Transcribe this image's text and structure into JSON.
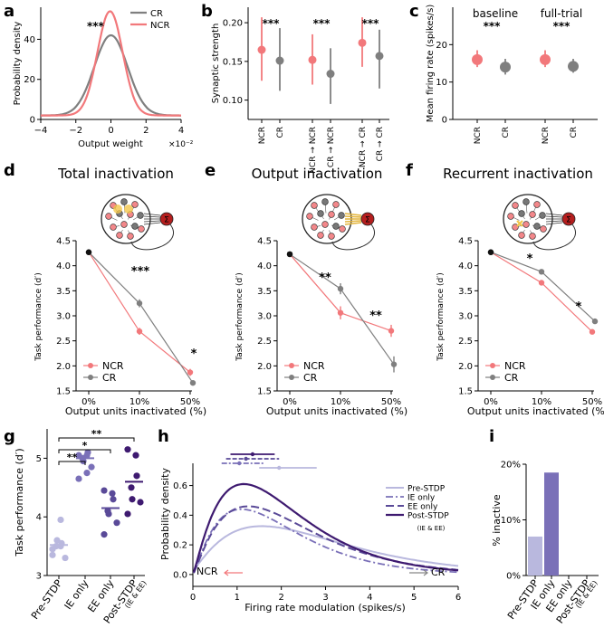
{
  "colors": {
    "ncr": "#f2787b",
    "cr": "#7f7f7f",
    "pre": "#b9b8de",
    "ie": "#7a70b8",
    "ee": "#5a4a98",
    "post": "#3e1a70"
  },
  "panels": {
    "a": "a",
    "b": "b",
    "c": "c",
    "d": "d",
    "e": "e",
    "f": "f",
    "g": "g",
    "h": "h",
    "i": "i"
  },
  "chart_data": [
    {
      "panel": "a",
      "type": "line",
      "title": "",
      "xlabel": "Output weight",
      "ylabel": "Probability density",
      "xlim": [
        -4,
        4
      ],
      "ylim": [
        0,
        56
      ],
      "x_scale_note": "×10⁻²",
      "xticks": [
        "−4",
        "−2",
        "0",
        "2",
        "4"
      ],
      "yticks": [
        "0",
        "20",
        "40"
      ],
      "series": [
        {
          "name": "CR",
          "mean": 0.0,
          "peak": 42,
          "width": 0.95
        },
        {
          "name": "NCR",
          "mean": -0.05,
          "peak": 54,
          "width": 0.72
        }
      ],
      "legend": [
        "CR",
        "NCR"
      ],
      "annotations": [
        "***"
      ]
    },
    {
      "panel": "b",
      "type": "scatter",
      "ylabel": "Synaptic strength",
      "ylim": [
        0.075,
        0.22
      ],
      "yticks": [
        "0.10",
        "0.15",
        "0.20"
      ],
      "categories": [
        "NCR",
        "CR",
        "NCR → NCR",
        "CR → NCR",
        "NCR → CR",
        "CR → CR"
      ],
      "groups": [
        "NCR",
        "CR",
        "NCR",
        "CR",
        "NCR",
        "CR"
      ],
      "values": [
        0.165,
        0.151,
        0.152,
        0.134,
        0.174,
        0.157
      ],
      "lower": [
        0.125,
        0.112,
        0.12,
        0.095,
        0.143,
        0.115
      ],
      "upper": [
        0.207,
        0.193,
        0.185,
        0.167,
        0.207,
        0.191
      ],
      "annotations": [
        "***",
        "***",
        "***"
      ]
    },
    {
      "panel": "c",
      "type": "scatter",
      "ylabel": "Mean firing rate (spikes/s)",
      "ylim": [
        0,
        30
      ],
      "yticks": [
        "0",
        "10",
        "20"
      ],
      "group_titles": [
        "baseline",
        "full-trial"
      ],
      "categories": [
        "NCR",
        "CR",
        "NCR",
        "CR"
      ],
      "groups": [
        "NCR",
        "CR",
        "NCR",
        "CR"
      ],
      "values": [
        16.0,
        14.0,
        16.0,
        14.2
      ],
      "lower": [
        14.0,
        12.0,
        14.0,
        12.5
      ],
      "upper": [
        18.5,
        16.2,
        18.5,
        16.2
      ],
      "annotations": [
        "***",
        "***"
      ]
    },
    {
      "panel": "d",
      "type": "line",
      "title": "Total inactivation",
      "xlabel": "Output units inactivated (%)",
      "ylabel": "Task performance (d′)",
      "ylim": [
        1.5,
        4.5
      ],
      "yticks": [
        "1.5",
        "2.0",
        "2.5",
        "3.0",
        "3.5",
        "4.0",
        "4.5"
      ],
      "categories": [
        "0%",
        "10%",
        "50%"
      ],
      "series": [
        {
          "name": "NCR",
          "values": [
            4.27,
            2.69,
            1.87
          ],
          "err": [
            0.05,
            0.07,
            0.07
          ]
        },
        {
          "name": "CR",
          "values": [
            4.27,
            3.25,
            1.66
          ],
          "err": [
            0.05,
            0.08,
            0.04
          ]
        }
      ],
      "annotations": [
        "***",
        "*"
      ],
      "legend": [
        "NCR",
        "CR"
      ]
    },
    {
      "panel": "e",
      "type": "line",
      "title": "Output inactivation",
      "xlabel": "Output units inactivated (%)",
      "ylabel": "Task performance (d′)",
      "ylim": [
        1.5,
        4.5
      ],
      "yticks": [
        "1.5",
        "2.0",
        "2.5",
        "3.0",
        "3.5",
        "4.0",
        "4.5"
      ],
      "categories": [
        "0%",
        "10%",
        "50%"
      ],
      "series": [
        {
          "name": "NCR",
          "values": [
            4.23,
            3.06,
            2.7
          ],
          "err": [
            0.04,
            0.13,
            0.12
          ]
        },
        {
          "name": "CR",
          "values": [
            4.23,
            3.54,
            2.03
          ],
          "err": [
            0.04,
            0.11,
            0.16
          ]
        }
      ],
      "annotations": [
        "**",
        "**"
      ],
      "legend": [
        "NCR",
        "CR"
      ]
    },
    {
      "panel": "f",
      "type": "line",
      "title": "Recurrent inactivation",
      "xlabel": "Output units inactivated (%)",
      "ylabel": "Task performance (d′)",
      "ylim": [
        1.5,
        4.5
      ],
      "yticks": [
        "1.5",
        "2.0",
        "2.5",
        "3.0",
        "3.5",
        "4.0",
        "4.5"
      ],
      "categories": [
        "0%",
        "10%",
        "50%"
      ],
      "series": [
        {
          "name": "NCR",
          "values": [
            4.27,
            3.66,
            2.68
          ],
          "err": [
            0.04,
            0.05,
            0.04
          ]
        },
        {
          "name": "CR",
          "values": [
            4.27,
            3.88,
            2.89
          ],
          "err": [
            0.04,
            0.05,
            0.04
          ]
        }
      ],
      "annotations": [
        "*",
        "*"
      ],
      "legend": [
        "NCR",
        "CR"
      ]
    },
    {
      "panel": "g",
      "type": "scatter",
      "ylabel": "Task performance (d′)",
      "ylim": [
        3,
        5.5
      ],
      "yticks": [
        "3",
        "4",
        "5"
      ],
      "categories": [
        "Pre-STDP",
        "IE only",
        "EE only",
        "Post-STDP"
      ],
      "category_notes": [
        "",
        "",
        "",
        "(IE & EE)"
      ],
      "points": [
        [
          3.45,
          3.5,
          3.55,
          3.5,
          3.6,
          3.3,
          3.35,
          3.95
        ],
        [
          5.05,
          5.05,
          5.1,
          5.0,
          4.95,
          4.85,
          4.65,
          4.75
        ],
        [
          4.45,
          4.4,
          4.3,
          4.1,
          4.05,
          3.9,
          3.7
        ],
        [
          5.15,
          5.05,
          4.7,
          4.5,
          4.3,
          4.25,
          4.05
        ]
      ],
      "means": [
        3.52,
        5.0,
        4.15,
        4.6
      ],
      "comparisons": [
        "**",
        "*",
        "**"
      ]
    },
    {
      "panel": "h",
      "type": "line",
      "xlabel": "Firing rate modulation (spikes/s)",
      "ylabel": "Probability density",
      "xlim": [
        0,
        6
      ],
      "ylim": [
        -0.08,
        0.75
      ],
      "xticks": [
        "0",
        "1",
        "2",
        "3",
        "4",
        "5",
        "6"
      ],
      "yticks": [
        "0.0",
        "0.2",
        "0.4",
        "0.6"
      ],
      "series": [
        {
          "name": "Pre-STDP",
          "style": "solid-light",
          "mode": 1.6,
          "peak": 0.32
        },
        {
          "name": "IE only",
          "style": "dashdot",
          "mode": 1.1,
          "peak": 0.44
        },
        {
          "name": "EE only",
          "style": "dashed",
          "mode": 1.25,
          "peak": 0.46
        },
        {
          "name": "Post-STDP",
          "sublabel": "(IE & EE)",
          "style": "solid",
          "mode": 1.15,
          "peak": 0.61
        }
      ],
      "top_markers": [
        {
          "name": "Post-STDP",
          "center": 1.35,
          "lo": 0.85,
          "hi": 1.85
        },
        {
          "name": "EE only",
          "center": 1.2,
          "lo": 0.75,
          "hi": 1.95
        },
        {
          "name": "IE only",
          "center": 1.05,
          "lo": 0.65,
          "hi": 1.6
        },
        {
          "name": "Pre-STDP",
          "center": 1.95,
          "lo": 1.5,
          "hi": 2.8
        }
      ],
      "arrows": [
        "NCR",
        "CR"
      ]
    },
    {
      "panel": "i",
      "type": "bar",
      "ylabel": "% inactive",
      "ylim": [
        0,
        20
      ],
      "yticks": [
        "0%",
        "10%",
        "20%"
      ],
      "categories": [
        "Pre-STDP",
        "IE only",
        "EE only",
        "Post-STDP"
      ],
      "category_notes": [
        "",
        "",
        "",
        "(IE & EE)"
      ],
      "values": [
        7,
        18.5,
        0,
        0
      ]
    }
  ]
}
